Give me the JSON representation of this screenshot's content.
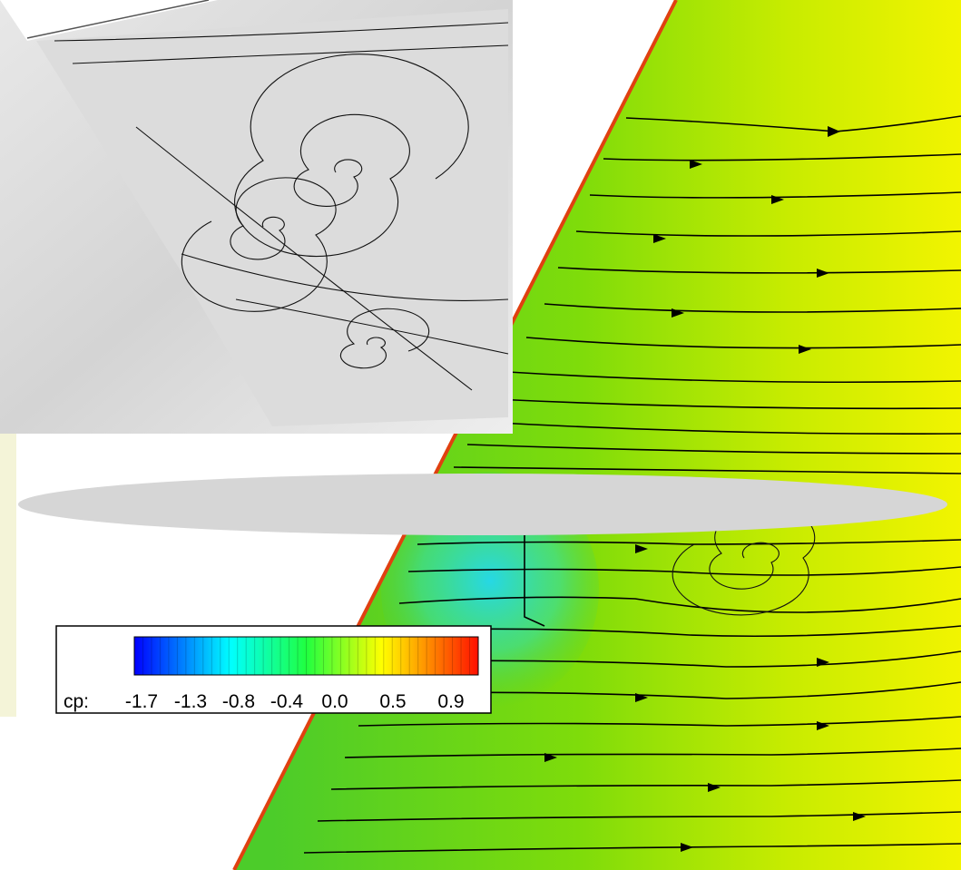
{
  "legend": {
    "label": "cp:",
    "ticks": [
      "-1.7",
      "-1.3",
      "-0.8",
      "-0.4",
      "0.0",
      "0.5",
      "0.9"
    ]
  }
}
